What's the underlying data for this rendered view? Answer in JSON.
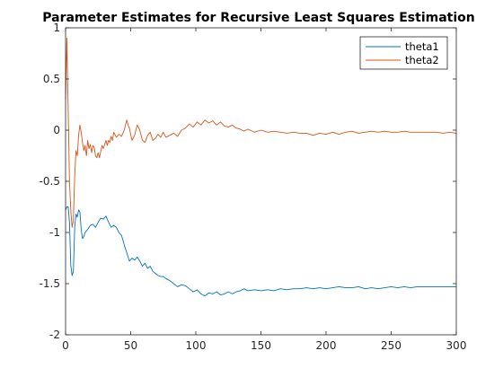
{
  "chart_data": {
    "type": "line",
    "title": "Parameter Estimates for Recursive Least Squares Estimation",
    "xlabel": "",
    "ylabel": "",
    "xlim": [
      0,
      300
    ],
    "ylim": [
      -2,
      1
    ],
    "xticks": [
      0,
      50,
      100,
      150,
      200,
      250,
      300
    ],
    "yticks": [
      -2,
      -1.5,
      -1,
      -0.5,
      0,
      0.5,
      1
    ],
    "xtick_labels": [
      "0",
      "50",
      "100",
      "150",
      "200",
      "250",
      "300"
    ],
    "ytick_labels": [
      "-2",
      "-1.5",
      "-1",
      "-0.5",
      "0",
      "0.5",
      "1"
    ],
    "grid": false,
    "legend_position": "top-right",
    "series": [
      {
        "name": "theta1",
        "color": "#0072BD",
        "points": [
          [
            0,
            -0.78
          ],
          [
            1,
            -0.75
          ],
          [
            2,
            -0.75
          ],
          [
            3,
            -0.9
          ],
          [
            4,
            -1.32
          ],
          [
            5,
            -1.42
          ],
          [
            6,
            -1.38
          ],
          [
            7,
            -0.95
          ],
          [
            8,
            -0.82
          ],
          [
            9,
            -0.85
          ],
          [
            10,
            -0.78
          ],
          [
            11,
            -0.8
          ],
          [
            12,
            -0.97
          ],
          [
            13,
            -1.06
          ],
          [
            14,
            -1.04
          ],
          [
            15,
            -1.0
          ],
          [
            17,
            -0.97
          ],
          [
            19,
            -0.93
          ],
          [
            21,
            -0.92
          ],
          [
            23,
            -0.95
          ],
          [
            25,
            -0.9
          ],
          [
            27,
            -0.86
          ],
          [
            29,
            -0.87
          ],
          [
            31,
            -0.84
          ],
          [
            33,
            -0.9
          ],
          [
            35,
            -0.95
          ],
          [
            37,
            -0.93
          ],
          [
            39,
            -0.95
          ],
          [
            41,
            -1.0
          ],
          [
            43,
            -1.03
          ],
          [
            45,
            -1.12
          ],
          [
            47,
            -1.2
          ],
          [
            49,
            -1.28
          ],
          [
            51,
            -1.25
          ],
          [
            53,
            -1.27
          ],
          [
            55,
            -1.24
          ],
          [
            57,
            -1.28
          ],
          [
            59,
            -1.33
          ],
          [
            61,
            -1.3
          ],
          [
            63,
            -1.35
          ],
          [
            65,
            -1.33
          ],
          [
            67,
            -1.38
          ],
          [
            69,
            -1.4
          ],
          [
            71,
            -1.42
          ],
          [
            73,
            -1.43
          ],
          [
            75,
            -1.43
          ],
          [
            77,
            -1.45
          ],
          [
            80,
            -1.47
          ],
          [
            83,
            -1.5
          ],
          [
            86,
            -1.53
          ],
          [
            89,
            -1.51
          ],
          [
            92,
            -1.52
          ],
          [
            95,
            -1.55
          ],
          [
            98,
            -1.58
          ],
          [
            101,
            -1.56
          ],
          [
            104,
            -1.6
          ],
          [
            107,
            -1.62
          ],
          [
            110,
            -1.59
          ],
          [
            113,
            -1.6
          ],
          [
            116,
            -1.58
          ],
          [
            119,
            -1.61
          ],
          [
            122,
            -1.6
          ],
          [
            125,
            -1.58
          ],
          [
            128,
            -1.6
          ],
          [
            131,
            -1.58
          ],
          [
            134,
            -1.57
          ],
          [
            137,
            -1.55
          ],
          [
            140,
            -1.57
          ],
          [
            145,
            -1.56
          ],
          [
            150,
            -1.57
          ],
          [
            155,
            -1.56
          ],
          [
            160,
            -1.57
          ],
          [
            165,
            -1.55
          ],
          [
            170,
            -1.56
          ],
          [
            175,
            -1.55
          ],
          [
            180,
            -1.55
          ],
          [
            185,
            -1.54
          ],
          [
            190,
            -1.55
          ],
          [
            195,
            -1.54
          ],
          [
            200,
            -1.55
          ],
          [
            205,
            -1.54
          ],
          [
            210,
            -1.53
          ],
          [
            215,
            -1.54
          ],
          [
            220,
            -1.54
          ],
          [
            225,
            -1.53
          ],
          [
            230,
            -1.55
          ],
          [
            235,
            -1.54
          ],
          [
            240,
            -1.55
          ],
          [
            245,
            -1.54
          ],
          [
            250,
            -1.53
          ],
          [
            255,
            -1.54
          ],
          [
            260,
            -1.53
          ],
          [
            265,
            -1.54
          ],
          [
            270,
            -1.53
          ],
          [
            275,
            -1.53
          ],
          [
            280,
            -1.53
          ],
          [
            285,
            -1.53
          ],
          [
            290,
            -1.53
          ],
          [
            295,
            -1.53
          ],
          [
            300,
            -1.53
          ]
        ]
      },
      {
        "name": "theta2",
        "color": "#D95319",
        "points": [
          [
            0,
            0.3
          ],
          [
            1,
            0.9
          ],
          [
            2,
            0.2
          ],
          [
            3,
            -0.5
          ],
          [
            4,
            -0.78
          ],
          [
            5,
            -0.95
          ],
          [
            6,
            -0.88
          ],
          [
            7,
            -0.45
          ],
          [
            8,
            -0.2
          ],
          [
            9,
            -0.25
          ],
          [
            10,
            -0.05
          ],
          [
            11,
            0.05
          ],
          [
            12,
            -0.02
          ],
          [
            13,
            -0.12
          ],
          [
            14,
            -0.2
          ],
          [
            15,
            -0.15
          ],
          [
            16,
            -0.25
          ],
          [
            17,
            -0.1
          ],
          [
            18,
            -0.18
          ],
          [
            19,
            -0.14
          ],
          [
            20,
            -0.22
          ],
          [
            21,
            -0.15
          ],
          [
            22,
            -0.17
          ],
          [
            23,
            -0.25
          ],
          [
            24,
            -0.27
          ],
          [
            25,
            -0.22
          ],
          [
            26,
            -0.27
          ],
          [
            27,
            -0.21
          ],
          [
            28,
            -0.15
          ],
          [
            29,
            -0.18
          ],
          [
            30,
            -0.14
          ],
          [
            31,
            -0.1
          ],
          [
            32,
            -0.15
          ],
          [
            33,
            -0.1
          ],
          [
            34,
            -0.12
          ],
          [
            35,
            -0.06
          ],
          [
            36,
            -0.1
          ],
          [
            37,
            -0.02
          ],
          [
            39,
            -0.07
          ],
          [
            41,
            -0.04
          ],
          [
            43,
            -0.06
          ],
          [
            45,
            0.0
          ],
          [
            47,
            0.1
          ],
          [
            48,
            0.05
          ],
          [
            49,
            0.02
          ],
          [
            51,
            -0.1
          ],
          [
            53,
            -0.05
          ],
          [
            55,
            0.05
          ],
          [
            57,
            0.0
          ],
          [
            59,
            -0.1
          ],
          [
            61,
            -0.12
          ],
          [
            63,
            -0.05
          ],
          [
            65,
            -0.02
          ],
          [
            67,
            -0.1
          ],
          [
            69,
            -0.08
          ],
          [
            71,
            -0.04
          ],
          [
            73,
            -0.07
          ],
          [
            75,
            -0.02
          ],
          [
            77,
            -0.07
          ],
          [
            80,
            -0.05
          ],
          [
            83,
            -0.03
          ],
          [
            86,
            -0.06
          ],
          [
            89,
            0.0
          ],
          [
            92,
            0.02
          ],
          [
            95,
            0.06
          ],
          [
            98,
            0.03
          ],
          [
            101,
            0.08
          ],
          [
            104,
            0.05
          ],
          [
            107,
            0.1
          ],
          [
            110,
            0.07
          ],
          [
            113,
            0.09
          ],
          [
            116,
            0.05
          ],
          [
            119,
            0.08
          ],
          [
            122,
            0.04
          ],
          [
            125,
            0.03
          ],
          [
            128,
            0.05
          ],
          [
            131,
            0.02
          ],
          [
            134,
            0.01
          ],
          [
            137,
            -0.01
          ],
          [
            140,
            0.01
          ],
          [
            145,
            -0.02
          ],
          [
            150,
            0.0
          ],
          [
            155,
            -0.02
          ],
          [
            160,
            -0.01
          ],
          [
            165,
            -0.02
          ],
          [
            170,
            -0.03
          ],
          [
            175,
            -0.02
          ],
          [
            180,
            -0.03
          ],
          [
            185,
            -0.03
          ],
          [
            190,
            -0.05
          ],
          [
            195,
            -0.03
          ],
          [
            200,
            -0.04
          ],
          [
            205,
            -0.02
          ],
          [
            210,
            -0.04
          ],
          [
            215,
            -0.02
          ],
          [
            220,
            -0.01
          ],
          [
            225,
            -0.03
          ],
          [
            230,
            -0.02
          ],
          [
            235,
            -0.01
          ],
          [
            240,
            -0.02
          ],
          [
            245,
            -0.01
          ],
          [
            250,
            -0.02
          ],
          [
            255,
            -0.02
          ],
          [
            260,
            -0.01
          ],
          [
            265,
            -0.02
          ],
          [
            270,
            -0.02
          ],
          [
            275,
            -0.02
          ],
          [
            280,
            -0.02
          ],
          [
            285,
            -0.02
          ],
          [
            290,
            -0.03
          ],
          [
            295,
            -0.02
          ],
          [
            300,
            -0.03
          ]
        ]
      }
    ]
  }
}
